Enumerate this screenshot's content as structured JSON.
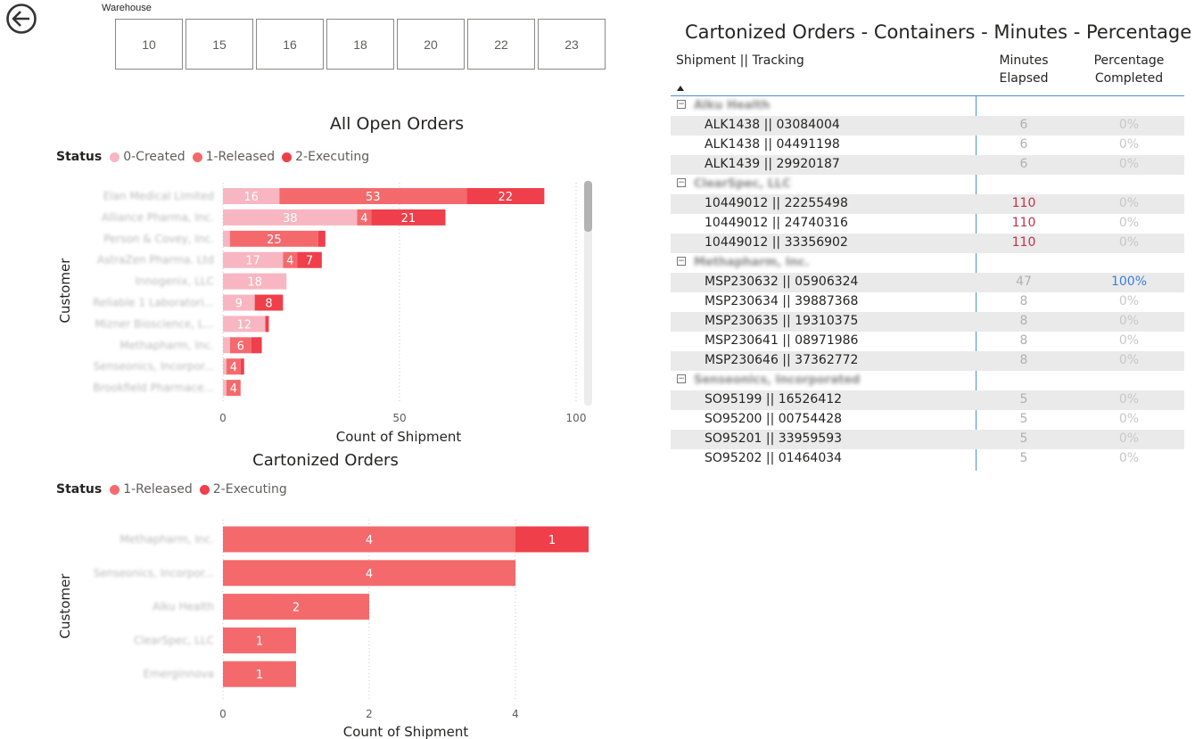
{
  "slicer": {
    "label": "Warehouse",
    "items": [
      "10",
      "15",
      "16",
      "18",
      "20",
      "22",
      "23"
    ]
  },
  "colors": {
    "created": "#f7b6c1",
    "released": "#f46a6c",
    "executing": "#ef3f4a",
    "accent_blue": "#4a90d9",
    "red_value": "#c4314b",
    "blue_value": "#3d7fd6"
  },
  "icons": {
    "back": "back-arrow-icon"
  },
  "open_orders": {
    "title": "All Open Orders",
    "legend_title": "Status",
    "legend": [
      "0-Created",
      "1-Released",
      "2-Executing"
    ]
  },
  "cartonized": {
    "title": "Cartonized Orders",
    "legend_title": "Status",
    "legend": [
      "1-Released",
      "2-Executing"
    ]
  },
  "chart_data": [
    {
      "type": "bar",
      "orientation": "horizontal",
      "stacked": true,
      "title": "All Open Orders",
      "xlabel": "Count of Shipment",
      "ylabel": "Customer",
      "xlim": [
        0,
        100
      ],
      "xticks": [
        "0",
        "50",
        "100"
      ],
      "grid": true,
      "legend_position": "top-left",
      "categories": [
        "Elan Medical Limited",
        "Alliance Pharma, Inc.",
        "Person & Covey, Inc.",
        "AstraZen Pharma. Ltd",
        "Innogenix, LLC",
        "Reliable 1 Laboratori...",
        "Mizner Bioscience, L...",
        "Methapharm, Inc.",
        "Senseonics, Incorpor...",
        "Brookfield Pharmace..."
      ],
      "series": [
        {
          "name": "0-Created",
          "values": [
            16,
            38,
            2,
            17,
            18,
            9,
            12,
            2,
            1,
            1
          ]
        },
        {
          "name": "1-Released",
          "values": [
            53,
            4,
            25,
            4,
            0,
            0,
            0,
            6,
            4,
            4
          ]
        },
        {
          "name": "2-Executing",
          "values": [
            22,
            21,
            2,
            7,
            0,
            8,
            1,
            3,
            1,
            0
          ]
        }
      ],
      "data_labels": [
        [
          "16",
          "53",
          "22"
        ],
        [
          "38",
          "4",
          "21"
        ],
        [
          "",
          "25",
          ""
        ],
        [
          "17",
          "4",
          "7"
        ],
        [
          "18",
          "",
          ""
        ],
        [
          "9",
          "",
          "8"
        ],
        [
          "12",
          "",
          ""
        ],
        [
          "",
          "6",
          ""
        ],
        [
          "",
          "4",
          ""
        ],
        [
          "",
          "4",
          ""
        ]
      ]
    },
    {
      "type": "bar",
      "orientation": "horizontal",
      "stacked": true,
      "title": "Cartonized Orders",
      "xlabel": "Count of Shipment",
      "ylabel": "Customer",
      "xlim": [
        0,
        5
      ],
      "xticks": [
        "0",
        "2",
        "4"
      ],
      "grid": true,
      "legend_position": "top-left",
      "categories": [
        "Methapharm, Inc.",
        "Senseonics, Incorpor...",
        "Alku Health",
        "ClearSpec, LLC",
        "Emerginnova"
      ],
      "series": [
        {
          "name": "1-Released",
          "values": [
            4,
            4,
            2,
            1,
            1
          ]
        },
        {
          "name": "2-Executing",
          "values": [
            1,
            0,
            0,
            0,
            0
          ]
        }
      ],
      "data_labels": [
        [
          "4",
          "1"
        ],
        [
          "4",
          ""
        ],
        [
          "2",
          ""
        ],
        [
          "1",
          ""
        ],
        [
          "1",
          ""
        ]
      ]
    }
  ],
  "table": {
    "title": "Cartonized Orders - Containers - Minutes - Percentage",
    "headers": {
      "shipment": "Shipment || Tracking",
      "minutes_line1": "Minutes",
      "minutes_line2": "Elapsed",
      "percentage_line1": "Percentage",
      "percentage_line2": "Completed"
    },
    "groups": [
      {
        "name": "Alku Health",
        "rows": [
          {
            "shipment": "ALK1438 || 03084004",
            "minutes": "6",
            "percent": "0%",
            "minutes_style": "normal",
            "percent_style": "normal"
          },
          {
            "shipment": "ALK1438 || 04491198",
            "minutes": "6",
            "percent": "0%",
            "minutes_style": "normal",
            "percent_style": "normal"
          },
          {
            "shipment": "ALK1439 || 29920187",
            "minutes": "6",
            "percent": "0%",
            "minutes_style": "normal",
            "percent_style": "normal"
          }
        ]
      },
      {
        "name": "ClearSpec, LLC",
        "rows": [
          {
            "shipment": "10449012 || 22255498",
            "minutes": "110",
            "percent": "0%",
            "minutes_style": "red",
            "percent_style": "normal"
          },
          {
            "shipment": "10449012 || 24740316",
            "minutes": "110",
            "percent": "0%",
            "minutes_style": "red",
            "percent_style": "normal"
          },
          {
            "shipment": "10449012 || 33356902",
            "minutes": "110",
            "percent": "0%",
            "minutes_style": "red",
            "percent_style": "normal"
          }
        ]
      },
      {
        "name": "Methapharm, Inc.",
        "rows": [
          {
            "shipment": "MSP230632 || 05906324",
            "minutes": "47",
            "percent": "100%",
            "minutes_style": "normal",
            "percent_style": "blue"
          },
          {
            "shipment": "MSP230634 || 39887368",
            "minutes": "8",
            "percent": "0%",
            "minutes_style": "normal",
            "percent_style": "normal"
          },
          {
            "shipment": "MSP230635 || 19310375",
            "minutes": "8",
            "percent": "0%",
            "minutes_style": "normal",
            "percent_style": "normal"
          },
          {
            "shipment": "MSP230641 || 08971986",
            "minutes": "8",
            "percent": "0%",
            "minutes_style": "normal",
            "percent_style": "normal"
          },
          {
            "shipment": "MSP230646 || 37362772",
            "minutes": "8",
            "percent": "0%",
            "minutes_style": "normal",
            "percent_style": "normal"
          }
        ]
      },
      {
        "name": "Senseonics, Incorporated",
        "rows": [
          {
            "shipment": "SO95199 || 16526412",
            "minutes": "5",
            "percent": "0%",
            "minutes_style": "normal",
            "percent_style": "normal"
          },
          {
            "shipment": "SO95200 || 00754428",
            "minutes": "5",
            "percent": "0%",
            "minutes_style": "normal",
            "percent_style": "normal"
          },
          {
            "shipment": "SO95201 || 33959593",
            "minutes": "5",
            "percent": "0%",
            "minutes_style": "normal",
            "percent_style": "normal"
          },
          {
            "shipment": "SO95202 || 01464034",
            "minutes": "5",
            "percent": "0%",
            "minutes_style": "normal",
            "percent_style": "normal"
          }
        ]
      }
    ]
  }
}
